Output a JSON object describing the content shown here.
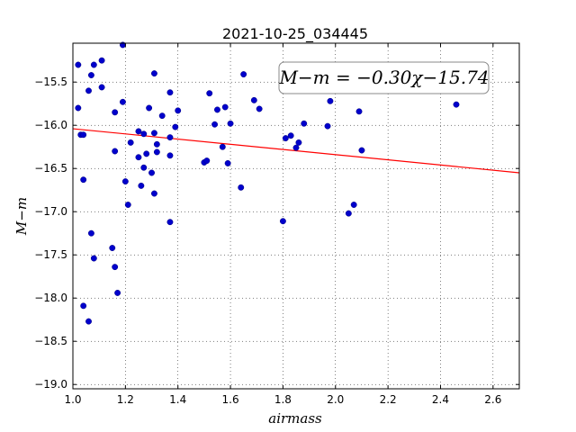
{
  "chart_data": {
    "type": "scatter",
    "title": "2021-10-25_034445",
    "xlabel": "airmass",
    "ylabel": "M−m",
    "xlim": [
      1.0,
      2.7
    ],
    "ylim": [
      -19.05,
      -15.05
    ],
    "y_inverted": true,
    "grid": true,
    "grid_style": "dotted",
    "xticks": [
      1.0,
      1.2,
      1.4,
      1.6,
      1.8,
      2.0,
      2.2,
      2.4,
      2.6
    ],
    "xtick_labels": [
      "1.0",
      "1.2",
      "1.4",
      "1.6",
      "1.8",
      "2.0",
      "2.2",
      "2.4",
      "2.6"
    ],
    "yticks": [
      -15.5,
      -16.0,
      -16.5,
      -17.0,
      -17.5,
      -18.0,
      -18.5,
      -19.0
    ],
    "ytick_labels": [
      "−15.5",
      "−16.0",
      "−16.5",
      "−17.0",
      "−17.5",
      "−18.0",
      "−18.5",
      "−19.0"
    ],
    "annotation": "M−m = −0.30χ−15.74",
    "fit_line": {
      "slope": -0.3,
      "intercept": -15.74,
      "color": "#ff0000"
    },
    "marker_color": "#0000cc",
    "points": [
      [
        1.02,
        -15.3
      ],
      [
        1.02,
        -15.8
      ],
      [
        1.03,
        -16.11
      ],
      [
        1.04,
        -16.11
      ],
      [
        1.04,
        -16.63
      ],
      [
        1.06,
        -15.6
      ],
      [
        1.07,
        -15.42
      ],
      [
        1.08,
        -15.3
      ],
      [
        1.11,
        -15.25
      ],
      [
        1.11,
        -15.56
      ],
      [
        1.19,
        -15.07
      ],
      [
        1.16,
        -15.85
      ],
      [
        1.19,
        -15.73
      ],
      [
        1.16,
        -16.3
      ],
      [
        1.2,
        -16.65
      ],
      [
        1.21,
        -16.92
      ],
      [
        1.22,
        -16.2
      ],
      [
        1.25,
        -16.07
      ],
      [
        1.25,
        -16.37
      ],
      [
        1.27,
        -16.1
      ],
      [
        1.27,
        -16.49
      ],
      [
        1.26,
        -16.7
      ],
      [
        1.28,
        -16.33
      ],
      [
        1.29,
        -15.8
      ],
      [
        1.31,
        -15.4
      ],
      [
        1.31,
        -16.09
      ],
      [
        1.32,
        -16.22
      ],
      [
        1.32,
        -16.31
      ],
      [
        1.3,
        -16.55
      ],
      [
        1.31,
        -16.79
      ],
      [
        1.34,
        -15.89
      ],
      [
        1.37,
        -15.62
      ],
      [
        1.37,
        -16.14
      ],
      [
        1.37,
        -16.35
      ],
      [
        1.37,
        -17.12
      ],
      [
        1.39,
        -16.02
      ],
      [
        1.4,
        -15.83
      ],
      [
        1.5,
        -16.43
      ],
      [
        1.51,
        -16.41
      ],
      [
        1.52,
        -15.63
      ],
      [
        1.54,
        -15.99
      ],
      [
        1.55,
        -15.82
      ],
      [
        1.57,
        -16.25
      ],
      [
        1.58,
        -15.79
      ],
      [
        1.59,
        -16.44
      ],
      [
        1.6,
        -15.98
      ],
      [
        1.64,
        -16.72
      ],
      [
        1.65,
        -15.41
      ],
      [
        1.69,
        -15.71
      ],
      [
        1.71,
        -15.81
      ],
      [
        1.81,
        -16.15
      ],
      [
        1.83,
        -16.12
      ],
      [
        1.85,
        -16.26
      ],
      [
        1.86,
        -16.2
      ],
      [
        1.8,
        -17.11
      ],
      [
        1.88,
        -15.98
      ],
      [
        1.97,
        -16.01
      ],
      [
        1.98,
        -15.72
      ],
      [
        2.05,
        -17.02
      ],
      [
        2.07,
        -16.92
      ],
      [
        2.09,
        -15.84
      ],
      [
        2.1,
        -16.29
      ],
      [
        2.46,
        -15.76
      ],
      [
        1.07,
        -17.25
      ],
      [
        1.08,
        -17.54
      ],
      [
        1.15,
        -17.42
      ],
      [
        1.16,
        -17.64
      ],
      [
        1.17,
        -17.94
      ],
      [
        1.04,
        -18.09
      ],
      [
        1.06,
        -18.27
      ]
    ]
  }
}
